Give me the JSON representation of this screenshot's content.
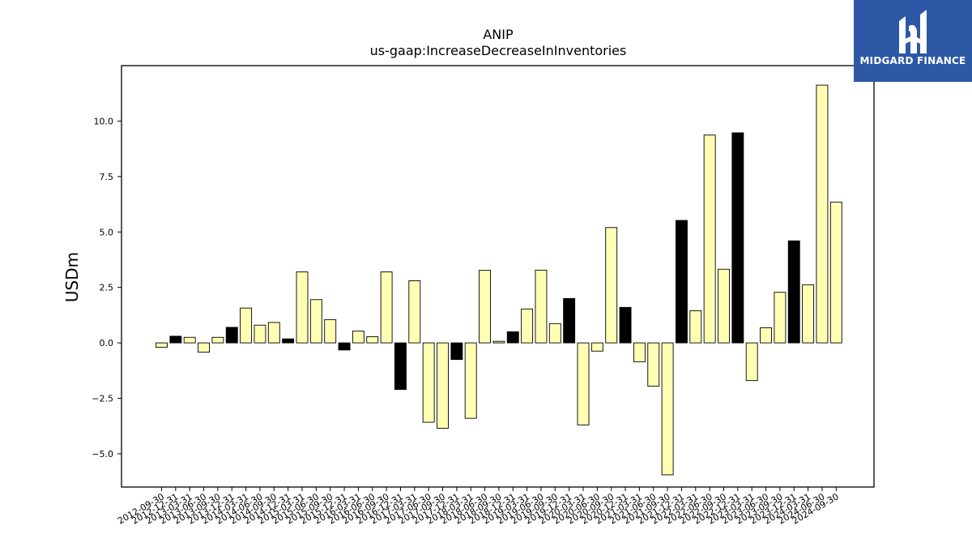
{
  "chart_data": {
    "type": "bar",
    "title": "ANIP",
    "subtitle": "us-gaap:IncreaseDecreaseInInventories",
    "ylabel": "USDm",
    "xlabel": "",
    "ylim": [
      -6.5,
      12.5
    ],
    "yticks": [
      -5.0,
      -2.5,
      0.0,
      2.5,
      5.0,
      7.5,
      10.0
    ],
    "ytick_labels": [
      "−5.0",
      "−2.5",
      "0.0",
      "2.5",
      "5.0",
      "7.5",
      "10.0"
    ],
    "grid": false,
    "legend": "none",
    "categories": [
      "2012-09-30",
      "2012-12-31",
      "2013-03-31",
      "2013-06-30",
      "2013-09-30",
      "2013-12-31",
      "2014-03-31",
      "2014-06-30",
      "2014-09-30",
      "2014-12-31",
      "2015-03-31",
      "2015-06-30",
      "2015-09-30",
      "2015-12-31",
      "2016-03-31",
      "2016-06-30",
      "2016-09-30",
      "2016-12-31",
      "2017-03-31",
      "2017-06-30",
      "2017-09-30",
      "2017-12-31",
      "2018-03-31",
      "2018-06-30",
      "2018-09-30",
      "2018-12-31",
      "2019-03-31",
      "2019-06-30",
      "2019-09-30",
      "2019-12-31",
      "2020-03-31",
      "2020-06-30",
      "2020-09-30",
      "2020-12-31",
      "2021-03-31",
      "2021-06-30",
      "2021-09-30",
      "2021-12-31",
      "2022-03-31",
      "2022-06-30",
      "2022-09-30",
      "2022-12-31",
      "2023-03-31",
      "2023-06-30",
      "2023-09-30",
      "2023-12-31",
      "2024-03-31",
      "2024-06-30",
      "2024-09-30"
    ],
    "values": [
      -0.2,
      0.3,
      0.25,
      -0.42,
      0.25,
      0.7,
      1.57,
      0.8,
      0.92,
      0.18,
      3.2,
      1.95,
      1.05,
      -0.32,
      0.53,
      0.28,
      3.2,
      -2.1,
      2.8,
      -3.58,
      -3.85,
      -0.75,
      -3.4,
      3.27,
      0.07,
      0.5,
      1.53,
      3.28,
      0.87,
      2.0,
      -3.7,
      -0.37,
      5.2,
      1.6,
      -0.85,
      -1.95,
      -5.95,
      5.52,
      1.45,
      9.37,
      3.32,
      9.47,
      -1.7,
      0.68,
      2.28,
      4.6,
      2.62,
      11.62,
      6.35
    ],
    "colors": [
      "#ffffb4",
      "#000000",
      "#ffffb4",
      "#ffffb4",
      "#ffffb4",
      "#000000",
      "#ffffb4",
      "#ffffb4",
      "#ffffb4",
      "#000000",
      "#ffffb4",
      "#ffffb4",
      "#ffffb4",
      "#000000",
      "#ffffb4",
      "#ffffb4",
      "#ffffb4",
      "#000000",
      "#ffffb4",
      "#ffffb4",
      "#ffffb4",
      "#000000",
      "#ffffb4",
      "#ffffb4",
      "#ffffb4",
      "#000000",
      "#ffffb4",
      "#ffffb4",
      "#ffffb4",
      "#000000",
      "#ffffb4",
      "#ffffb4",
      "#ffffb4",
      "#000000",
      "#ffffb4",
      "#ffffb4",
      "#ffffb4",
      "#000000",
      "#ffffb4",
      "#ffffb4",
      "#ffffb4",
      "#000000",
      "#ffffb4",
      "#ffffb4",
      "#ffffb4",
      "#000000",
      "#ffffb4",
      "#ffffb4",
      "#ffffb4"
    ]
  },
  "logo": {
    "text": "MIDGARD FINANCE",
    "background": "#2d58a6",
    "icon": "midgard-logo-icon"
  }
}
